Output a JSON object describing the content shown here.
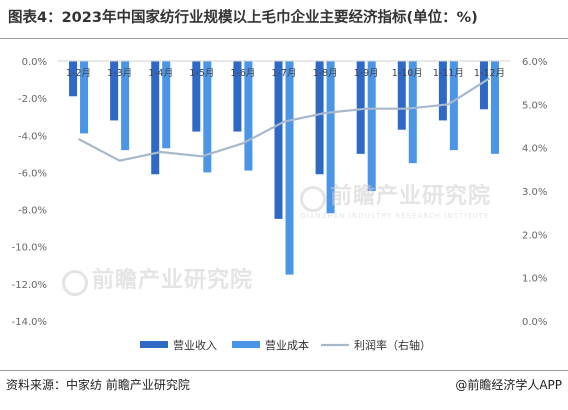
{
  "title": "图表4：2023年中国家纺行业规模以上毛巾企业主要经济指标(单位：%)",
  "footer": {
    "source": "资料来源：中家纺 前瞻产业研究院",
    "brand": "@前瞻经济学人APP"
  },
  "watermark": {
    "logo": "前瞻产业研究院",
    "sub": "QIANZHAN INDUSTRY RESEARCH INSTITUTE"
  },
  "colors": {
    "revenue": "#2f69c6",
    "cost": "#4a95e6",
    "profit": "#a8b8cc",
    "axis_text": "#666666"
  },
  "chart_data": {
    "type": "bar",
    "categories": [
      "1-2月",
      "1-3月",
      "1-4月",
      "1-5月",
      "1-6月",
      "1-7月",
      "1-8月",
      "1-9月",
      "1-10月",
      "1-11月",
      "1-12月"
    ],
    "series": [
      {
        "name": "营业收入",
        "type": "bar",
        "axis": "left",
        "values": [
          -1.9,
          -3.2,
          -6.1,
          -3.8,
          -3.8,
          -8.5,
          -6.1,
          -5.0,
          -3.7,
          -3.2,
          -2.6
        ]
      },
      {
        "name": "营业成本",
        "type": "bar",
        "axis": "left",
        "values": [
          -3.9,
          -4.8,
          -4.7,
          -6.0,
          -5.9,
          -11.5,
          -8.2,
          -7.0,
          -5.5,
          -4.8,
          -5.0
        ]
      },
      {
        "name": "利润率（右轴）",
        "type": "line",
        "axis": "right",
        "values": [
          4.2,
          3.7,
          3.9,
          3.8,
          4.1,
          4.6,
          4.8,
          4.9,
          4.9,
          5.0,
          5.6
        ]
      }
    ],
    "y_left": {
      "min": -14,
      "max": 0,
      "ticks": [
        "0.0%",
        "-2.0%",
        "-4.0%",
        "-6.0%",
        "-8.0%",
        "-10.0%",
        "-12.0%",
        "-14.0%"
      ]
    },
    "y_right": {
      "min": 0,
      "max": 6,
      "ticks": [
        "6.0%",
        "5.0%",
        "4.0%",
        "3.0%",
        "2.0%",
        "1.0%",
        "0.0%"
      ]
    },
    "legend_position": "bottom",
    "grid": false
  }
}
